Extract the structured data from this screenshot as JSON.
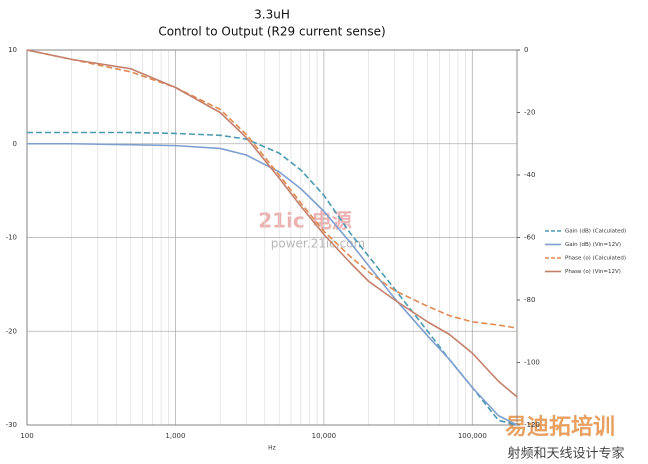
{
  "chart_data": {
    "type": "line",
    "title": "3.3uH",
    "subtitle": "Control to Output (R29 current sense)",
    "x_label": "Hz",
    "log_x": true,
    "grid": true,
    "legend": "right",
    "xlim": [
      100,
      200000
    ],
    "xticks": [
      100,
      {
        "value": 1000,
        "label": "1,000"
      },
      {
        "value": 10000,
        "label": "10,000"
      },
      {
        "value": 100000,
        "label": "100,000"
      }
    ],
    "ylim": [
      -30,
      10
    ],
    "yticks": [
      -30,
      -20,
      -10,
      0,
      10
    ],
    "y2lim": [
      -120,
      0
    ],
    "y2ticks": [
      -120,
      -100,
      -80,
      -60,
      -40,
      -20,
      0
    ],
    "x": [
      100,
      200,
      500,
      1000,
      2000,
      3000,
      5000,
      7000,
      10000,
      15000,
      20000,
      30000,
      50000,
      70000,
      100000,
      150000,
      200000
    ],
    "series": [
      {
        "name": "Gain (dB) (Calculated)",
        "color": "#4a9ab0",
        "dashed": true,
        "values": [
          1.2,
          1.2,
          1.2,
          1.1,
          0.9,
          0.5,
          -1.0,
          -2.8,
          -5.5,
          -9.5,
          -12,
          -15.5,
          -20,
          -23,
          -26,
          -29.5,
          -30
        ]
      },
      {
        "name": "Gain (dB) (Vin=12V)",
        "color": "#7f9fcf",
        "dashed": false,
        "values": [
          0,
          0,
          -0.1,
          -0.2,
          -0.5,
          -1.2,
          -3,
          -4.8,
          -7.2,
          -10.5,
          -13,
          -16.5,
          -20.5,
          -23,
          -26,
          -29,
          -30
        ]
      },
      {
        "name": "Phase (o) (Calculated)",
        "color": "#e08a50",
        "dashed": true,
        "axis": "y2",
        "values": [
          0,
          -3,
          -7,
          -12,
          -19,
          -27,
          -40,
          -49,
          -58,
          -66,
          -71,
          -77,
          -82,
          -85,
          -87,
          -88,
          -89
        ]
      },
      {
        "name": "Phase (o) (Vin=12V)",
        "color": "#c4806b",
        "dashed": false,
        "axis": "y2",
        "values": [
          0,
          -3,
          -6,
          -12,
          -20,
          -28,
          -41,
          -50,
          -59,
          -68,
          -74,
          -80,
          -87,
          -91,
          -97,
          -106,
          -111
        ]
      }
    ],
    "annotations": [
      "21ic 电源",
      "power.21ic.com",
      "易迪拓培训",
      "射频和天线设计专家"
    ]
  }
}
